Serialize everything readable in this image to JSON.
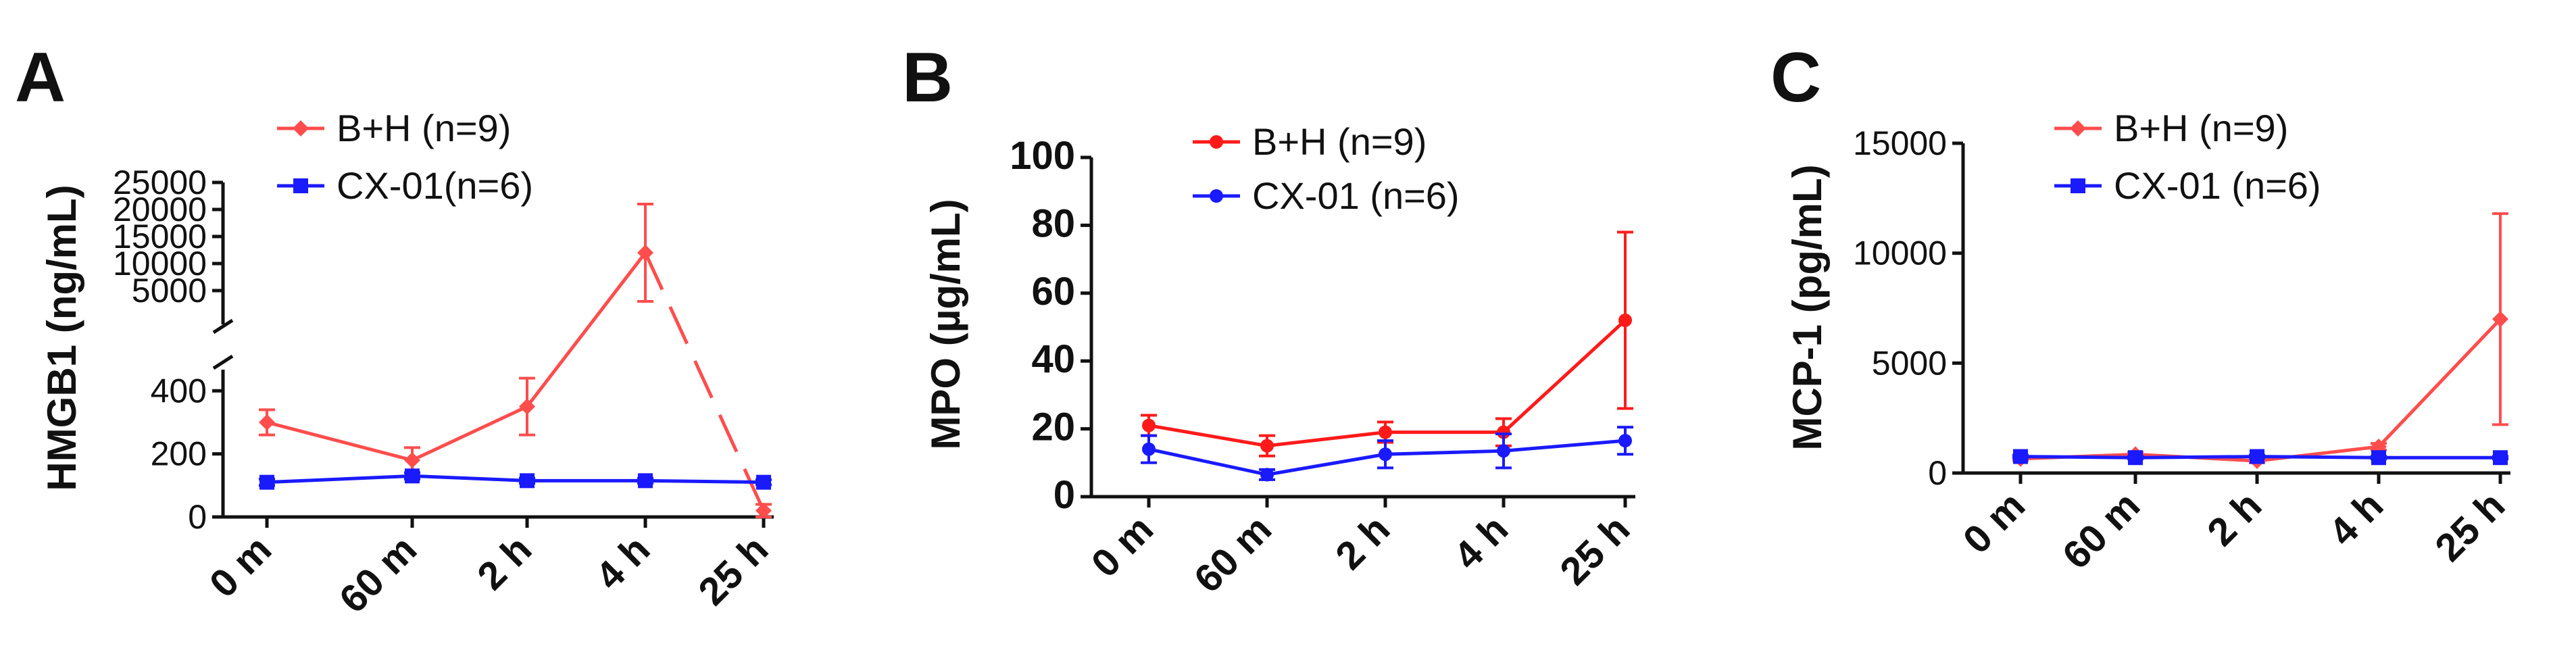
{
  "chart_data": [
    {
      "type": "line",
      "panel": "A",
      "ylabel": "HMGB1 (ng/mL)",
      "categories": [
        "0 m",
        "60 m",
        "2 h",
        "4 h",
        "25 h"
      ],
      "axis_break": true,
      "ylim_lower": [
        0,
        450
      ],
      "ylim_upper": [
        0,
        25000
      ],
      "yticks_lower": [
        "0",
        "200",
        "400"
      ],
      "yticks_upper": [
        "5000",
        "10000",
        "15000",
        "20000",
        "25000"
      ],
      "legend_position": "top-center",
      "series": [
        {
          "name": "B+H (n=9)",
          "color": "#ff4d4d",
          "marker": "diamond",
          "line": "solid-then-dashed",
          "values": [
            300,
            180,
            350,
            12000,
            20
          ],
          "errors": [
            40,
            40,
            90,
            9000,
            20
          ]
        },
        {
          "name": "CX-01(n=6)",
          "color": "#1a1aff",
          "marker": "square",
          "line": "solid",
          "values": [
            110,
            130,
            115,
            115,
            110
          ],
          "errors": [
            10,
            10,
            8,
            8,
            8
          ]
        }
      ]
    },
    {
      "type": "line",
      "panel": "B",
      "ylabel": "MPO (µg/mL)",
      "categories": [
        "0 m",
        "60 m",
        "2 h",
        "4 h",
        "25 h"
      ],
      "ylim": [
        0,
        100
      ],
      "yticks": [
        "0",
        "20",
        "40",
        "60",
        "80",
        "100"
      ],
      "legend_position": "top-center",
      "series": [
        {
          "name": "B+H (n=9)",
          "color": "#ff1a1a",
          "marker": "circle",
          "values": [
            21,
            15,
            19,
            19,
            52
          ],
          "errors": [
            3,
            3,
            3,
            4,
            26
          ]
        },
        {
          "name": "CX-01 (n=6)",
          "color": "#1a1aff",
          "marker": "circle",
          "values": [
            14,
            6.5,
            12.5,
            13.5,
            16.5
          ],
          "errors": [
            4,
            1.5,
            4,
            5,
            4
          ]
        }
      ]
    },
    {
      "type": "line",
      "panel": "C",
      "ylabel": "MCP-1 (pg/mL)",
      "categories": [
        "0 m",
        "60 m",
        "2 h",
        "4 h",
        "25 h"
      ],
      "ylim": [
        0,
        15000
      ],
      "yticks": [
        "0",
        "5000",
        "10000",
        "15000"
      ],
      "legend_position": "top-center",
      "series": [
        {
          "name": "B+H (n=9)",
          "color": "#ff4d4d",
          "marker": "diamond",
          "values": [
            650,
            850,
            550,
            1200,
            7000
          ],
          "errors": [
            80,
            100,
            80,
            150,
            4800
          ]
        },
        {
          "name": "CX-01 (n=6)",
          "color": "#1a1aff",
          "marker": "square",
          "values": [
            750,
            700,
            750,
            700,
            700
          ],
          "errors": [
            60,
            60,
            60,
            60,
            60
          ]
        }
      ]
    }
  ]
}
